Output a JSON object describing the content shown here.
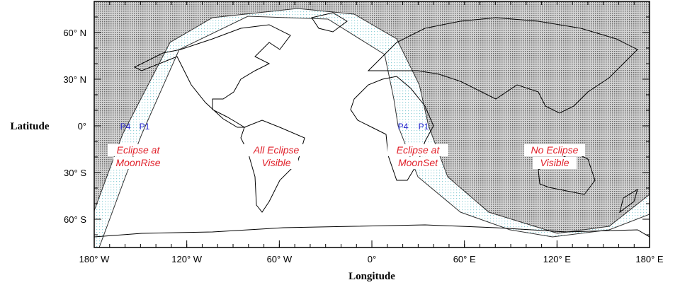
{
  "map": {
    "y_axis_label": "Latitude",
    "x_axis_label": "Longitude",
    "lat_ticks": [
      "60° N",
      "30° N",
      "0°",
      "30° S",
      "60° S"
    ],
    "lon_ticks": [
      "180° W",
      "120° W",
      "60° W",
      "0°",
      "60° E",
      "120° E",
      "180° E"
    ],
    "regions": [
      {
        "line1": "Eclipse at",
        "line2": "MoonRise"
      },
      {
        "line1": "All Eclipse",
        "line2": "Visible"
      },
      {
        "line1": "Eclipse at",
        "line2": "MoonSet"
      },
      {
        "line1": "No Eclipse",
        "line2": "Visible"
      }
    ],
    "contacts_west": [
      "P4",
      "P1"
    ],
    "contacts_east": [
      "P4",
      "P1"
    ],
    "colors": {
      "no_eclipse_shading": "#9a9a9a",
      "partial_shading": "#bfe6ea",
      "region_label": "#e0202a",
      "contact_label": "#2222cc"
    }
  }
}
